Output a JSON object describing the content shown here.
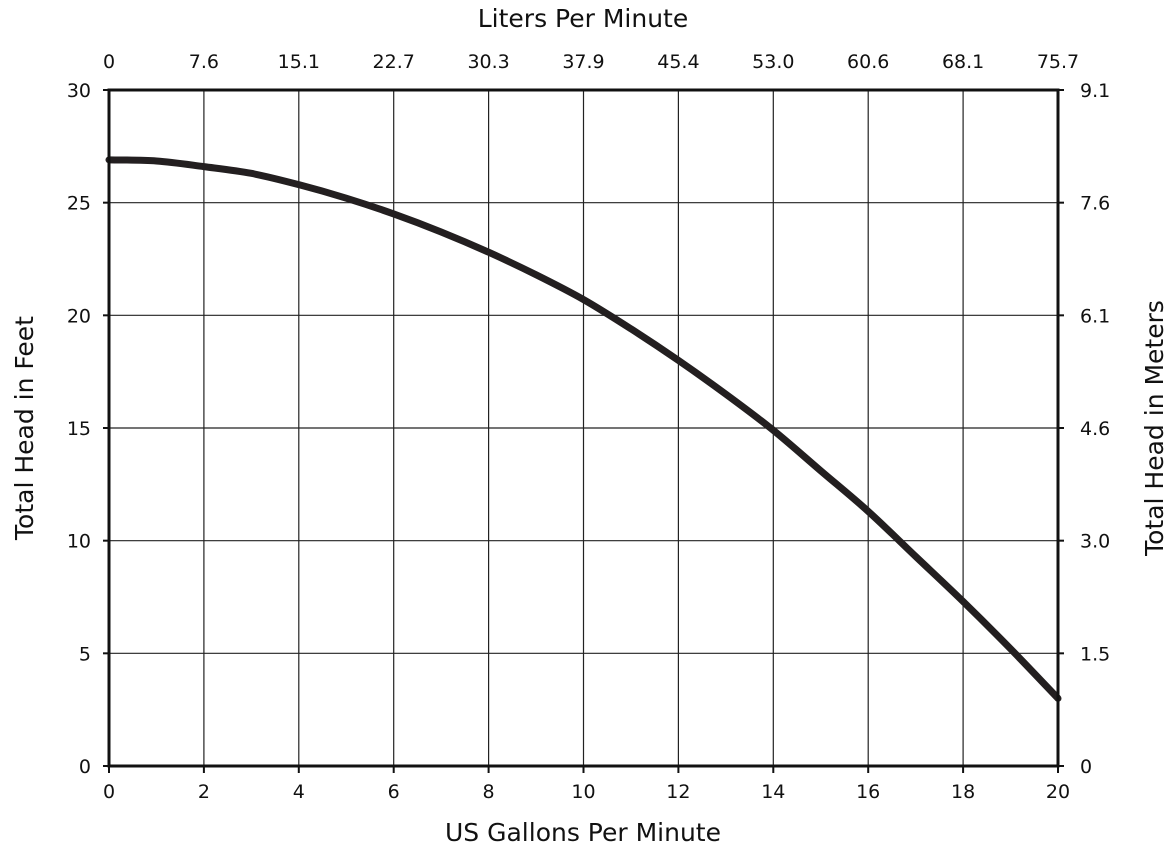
{
  "chart_data": {
    "type": "line",
    "xlabel": "US Gallons Per Minute",
    "x2label": "Liters Per Minute",
    "ylabel": "Total Head in Feet",
    "y2label": "Total Head in Meters",
    "xlim": [
      0,
      20
    ],
    "ylim": [
      0,
      30
    ],
    "x_ticks": [
      "0",
      "2",
      "4",
      "6",
      "8",
      "10",
      "12",
      "14",
      "16",
      "18",
      "20"
    ],
    "x2_ticks": [
      "0",
      "7.6",
      "15.1",
      "22.7",
      "30.3",
      "37.9",
      "45.4",
      "53.0",
      "60.6",
      "68.1",
      "75.7"
    ],
    "y_ticks": [
      "0",
      "5",
      "10",
      "15",
      "20",
      "25",
      "30"
    ],
    "y2_ticks": [
      "0",
      "1.5",
      "3.0",
      "4.6",
      "6.1",
      "7.6",
      "9.1"
    ],
    "grid": true,
    "series": [
      {
        "color": "#231f20",
        "x": [
          0,
          1,
          2,
          3,
          4,
          5,
          6,
          7,
          8,
          9,
          10,
          11,
          12,
          13,
          14,
          15,
          16,
          17,
          18,
          19,
          20
        ],
        "y": [
          26.9,
          26.85,
          26.6,
          26.3,
          25.8,
          25.2,
          24.5,
          23.7,
          22.8,
          21.8,
          20.7,
          19.4,
          18.0,
          16.5,
          14.9,
          13.1,
          11.3,
          9.3,
          7.3,
          5.2,
          3.0
        ]
      }
    ]
  }
}
